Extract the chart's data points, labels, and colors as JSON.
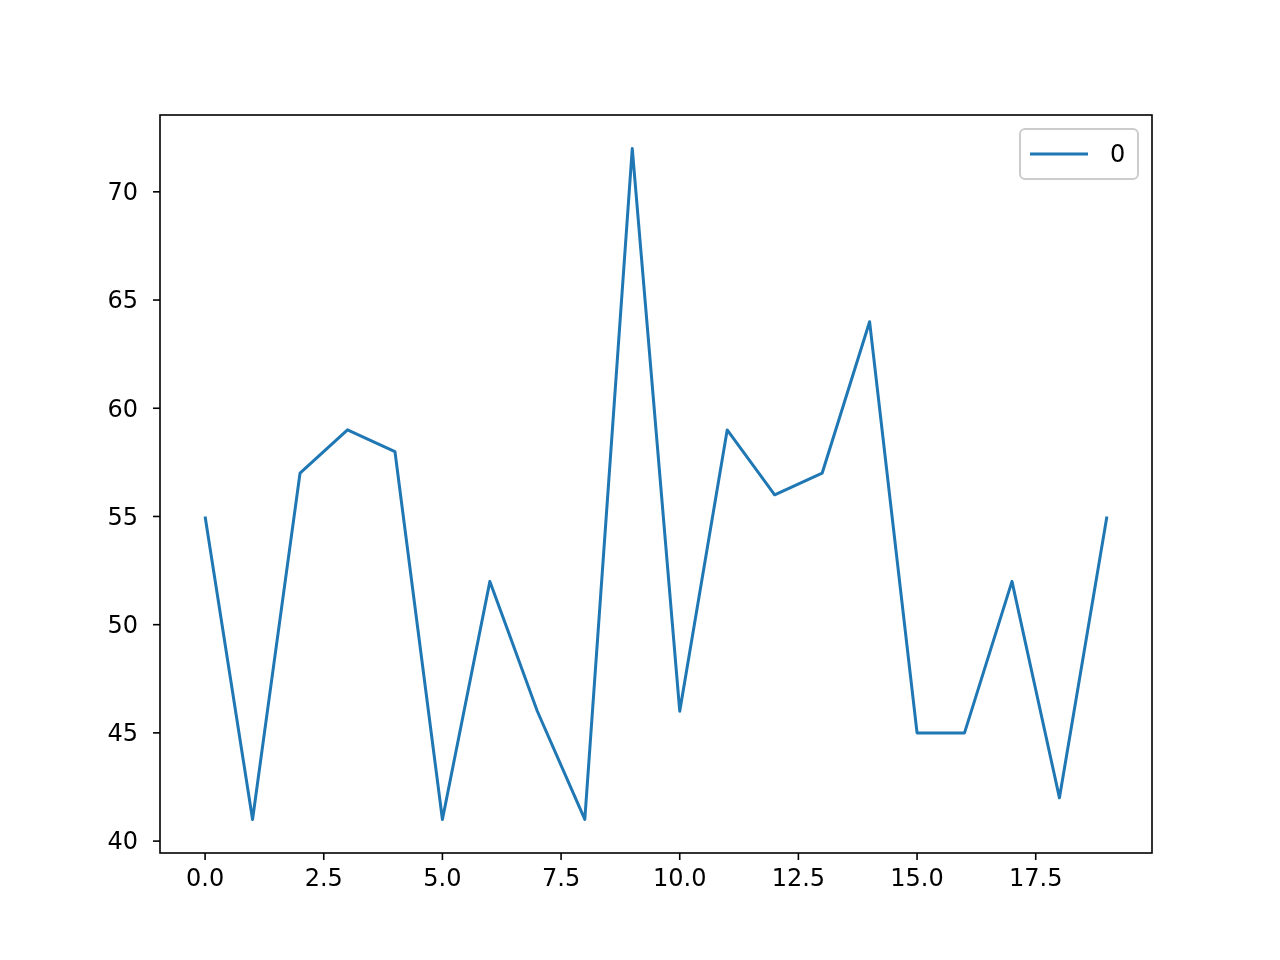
{
  "chart_data": {
    "type": "line",
    "x": [
      0,
      1,
      2,
      3,
      4,
      5,
      6,
      7,
      8,
      9,
      10,
      11,
      12,
      13,
      14,
      15,
      16,
      17,
      18,
      19
    ],
    "series": [
      {
        "name": "0",
        "color": "#1f77b4",
        "values": [
          55,
          41,
          57,
          59,
          58,
          41,
          52,
          46,
          41,
          72,
          46,
          59,
          56,
          57,
          64,
          45,
          45,
          52,
          42,
          55
        ]
      }
    ],
    "xlim": [
      -0.95,
      19.95
    ],
    "xticks": [
      {
        "value": 0,
        "label": "0.0"
      },
      {
        "value": 2.5,
        "label": "2.5"
      },
      {
        "value": 5,
        "label": "5.0"
      },
      {
        "value": 7.5,
        "label": "7.5"
      },
      {
        "value": 10,
        "label": "10.0"
      },
      {
        "value": 12.5,
        "label": "12.5"
      },
      {
        "value": 15,
        "label": "15.0"
      },
      {
        "value": 17.5,
        "label": "17.5"
      }
    ],
    "ylim": [
      39.45,
      73.55
    ],
    "yticks": [
      40,
      45,
      50,
      55,
      60,
      65,
      70
    ],
    "legend": "top right",
    "line_style": "solid"
  }
}
